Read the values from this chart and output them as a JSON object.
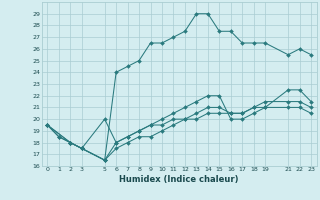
{
  "xlabel": "Humidex (Indice chaleur)",
  "bg_color": "#d4edf0",
  "grid_color": "#aacdd2",
  "line_color": "#2a7a7e",
  "xlim": [
    -0.5,
    23.5
  ],
  "ylim": [
    16,
    30
  ],
  "xticks": [
    0,
    1,
    2,
    3,
    5,
    6,
    7,
    8,
    9,
    10,
    11,
    12,
    13,
    14,
    15,
    16,
    17,
    18,
    19,
    21,
    22,
    23
  ],
  "yticks": [
    16,
    17,
    18,
    19,
    20,
    21,
    22,
    23,
    24,
    25,
    26,
    27,
    28,
    29
  ],
  "series": [
    {
      "x": [
        0,
        1,
        2,
        3,
        5,
        6,
        7,
        8,
        9,
        10,
        11,
        12,
        13,
        14,
        15,
        16,
        17,
        18,
        19,
        21,
        22,
        23
      ],
      "y": [
        19.5,
        18.5,
        18.0,
        17.5,
        16.5,
        24.0,
        24.5,
        25.0,
        26.5,
        26.5,
        27.0,
        27.5,
        29.0,
        29.0,
        27.5,
        27.5,
        26.5,
        26.5,
        26.5,
        25.5,
        26.0,
        25.5
      ]
    },
    {
      "x": [
        0,
        1,
        2,
        3,
        5,
        6,
        7,
        8,
        9,
        10,
        11,
        12,
        13,
        14,
        15,
        16,
        17,
        18,
        19,
        21,
        22,
        23
      ],
      "y": [
        19.5,
        18.5,
        18.0,
        17.5,
        20.0,
        18.0,
        18.5,
        19.0,
        19.5,
        20.0,
        20.5,
        21.0,
        21.5,
        22.0,
        22.0,
        20.0,
        20.0,
        20.5,
        21.0,
        22.5,
        22.5,
        21.5
      ]
    },
    {
      "x": [
        0,
        2,
        3,
        5,
        6,
        7,
        8,
        9,
        10,
        11,
        12,
        13,
        14,
        15,
        16,
        17,
        18,
        19,
        21,
        22,
        23
      ],
      "y": [
        19.5,
        18.0,
        17.5,
        16.5,
        18.0,
        18.5,
        19.0,
        19.5,
        19.5,
        20.0,
        20.0,
        20.5,
        21.0,
        21.0,
        20.5,
        20.5,
        21.0,
        21.0,
        21.0,
        21.0,
        20.5
      ]
    },
    {
      "x": [
        0,
        2,
        3,
        5,
        6,
        7,
        8,
        9,
        10,
        11,
        12,
        13,
        14,
        15,
        16,
        17,
        18,
        19,
        21,
        22,
        23
      ],
      "y": [
        19.5,
        18.0,
        17.5,
        16.5,
        17.5,
        18.0,
        18.5,
        18.5,
        19.0,
        19.5,
        20.0,
        20.0,
        20.5,
        20.5,
        20.5,
        20.5,
        21.0,
        21.5,
        21.5,
        21.5,
        21.0
      ]
    }
  ]
}
